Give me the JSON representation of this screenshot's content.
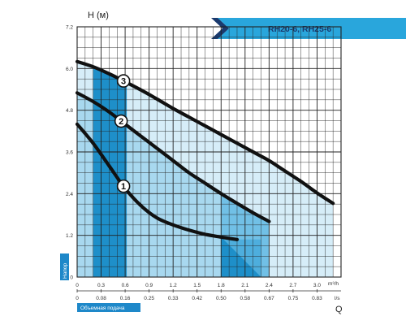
{
  "chart_data": {
    "type": "line",
    "title": "RH20-6, RH25-6",
    "ylabel": "H (м)",
    "ylabel_side": "Напор",
    "xlabel": "Q",
    "xlabel_bottom": "Объемная подача",
    "x_unit_primary": "m³/h",
    "x_unit_secondary": "l/s",
    "xlim": [
      0,
      3.3
    ],
    "ylim": [
      0,
      7.2
    ],
    "grid": true,
    "x_ticks": [
      "0",
      "0.3",
      "0.6",
      "0.9",
      "1.2",
      "1.5",
      "1.8",
      "2.1",
      "2.4",
      "2.7",
      "3.0"
    ],
    "x_ticks_secondary": [
      "0",
      "0.08",
      "0.16",
      "0.25",
      "0.33",
      "0.42",
      "0.50",
      "0.58",
      "0.67",
      "0.75",
      "0.83"
    ],
    "y_ticks": [
      "0",
      "1.2",
      "2.4",
      "3.6",
      "4.8",
      "6.0",
      "7.2"
    ],
    "series": [
      {
        "name": "1",
        "x": [
          0,
          0.2,
          0.4,
          0.6,
          0.8,
          1.0,
          1.2,
          1.4,
          1.6,
          1.8,
          2.0
        ],
        "y": [
          4.4,
          3.85,
          3.2,
          2.55,
          2.05,
          1.7,
          1.5,
          1.35,
          1.23,
          1.15,
          1.08
        ]
      },
      {
        "name": "2",
        "x": [
          0,
          0.2,
          0.4,
          0.6,
          0.8,
          1.0,
          1.2,
          1.4,
          1.6,
          1.8,
          2.0,
          2.2,
          2.4
        ],
        "y": [
          5.3,
          5.05,
          4.75,
          4.4,
          4.05,
          3.7,
          3.35,
          3.0,
          2.7,
          2.4,
          2.12,
          1.85,
          1.6
        ]
      },
      {
        "name": "3",
        "x": [
          0,
          0.2,
          0.4,
          0.6,
          0.8,
          1.0,
          1.2,
          1.4,
          1.6,
          1.8,
          2.0,
          2.2,
          2.4,
          2.6,
          2.8,
          3.0,
          3.2
        ],
        "y": [
          6.2,
          6.05,
          5.85,
          5.62,
          5.38,
          5.12,
          4.85,
          4.6,
          4.35,
          4.1,
          3.85,
          3.6,
          3.35,
          3.05,
          2.75,
          2.42,
          2.12
        ]
      }
    ],
    "bands": [
      {
        "x_start": 0.2,
        "x_end": 0.62,
        "under": "3"
      },
      {
        "x_start": 1.8,
        "x_end": 2.3,
        "under": "1"
      }
    ],
    "colors": {
      "band_dark": "#1e8fc9",
      "band_light": "#a8d8ef",
      "band_pale": "#d6edf8",
      "grid": "#222222",
      "curve": "#111111",
      "title_bg": "#29a6dc",
      "tag_bg": "#1e88c9"
    }
  }
}
